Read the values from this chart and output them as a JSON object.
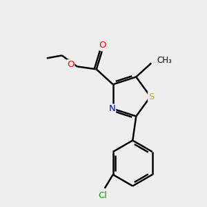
{
  "background_color": "#eeeeee",
  "bond_color": "#000000",
  "atom_colors": {
    "O": "#ff0000",
    "N": "#0000ff",
    "S": "#b8b800",
    "Cl": "#00aa00",
    "C": "#000000"
  },
  "figsize": [
    3.0,
    3.0
  ],
  "dpi": 100
}
